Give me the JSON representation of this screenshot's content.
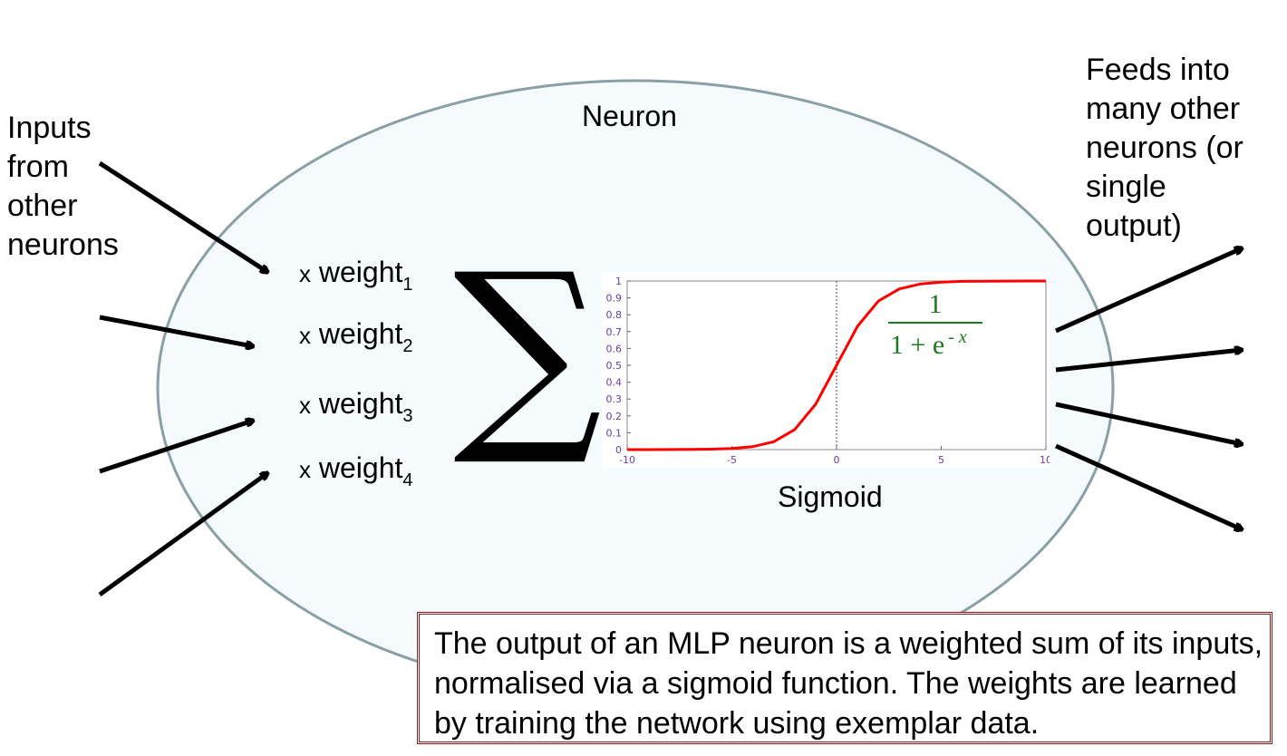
{
  "neuron_label": "Neuron",
  "inputs_label": "Inputs\nfrom\nother\nneurons",
  "outputs_label": "Feeds into\nmany other\nneurons (or\nsingle\noutput)",
  "weights": [
    {
      "prefix": "x",
      "word": "weight",
      "index": "1"
    },
    {
      "prefix": "x",
      "word": "weight",
      "index": "2"
    },
    {
      "prefix": "x",
      "word": "weight",
      "index": "3"
    },
    {
      "prefix": "x",
      "word": "weight",
      "index": "4"
    }
  ],
  "sum_symbol": "∑",
  "sigmoid_label": "Sigmoid",
  "formula": {
    "numerator": "1",
    "denominator_base": "1 + e",
    "denominator_exp": "- x"
  },
  "note": "The output of an MLP neuron is a weighted sum of its inputs, normalised via a sigmoid function.  The weights are learned by training the network using exemplar data.",
  "colors": {
    "neuron_fill": "#f5fafc",
    "neuron_stroke": "#8aa0a6",
    "curve": "#ff0000",
    "ticks": "#6a3d9a",
    "formula": "#1e7a1e",
    "note_border": "#8b1a1a"
  },
  "chart_data": {
    "type": "line",
    "function": "1/(1+e^-x)",
    "xlim": [
      -10,
      10
    ],
    "ylim": [
      0,
      1
    ],
    "x_ticks": [
      -10,
      -5,
      0,
      5,
      10
    ],
    "y_ticks": [
      0,
      0.1,
      0.2,
      0.3,
      0.4,
      0.5,
      0.6,
      0.7,
      0.8,
      0.9,
      1
    ],
    "x": [
      -10,
      -9,
      -8,
      -7,
      -6,
      -5,
      -4,
      -3,
      -2,
      -1,
      0,
      1,
      2,
      3,
      4,
      5,
      6,
      7,
      8,
      9,
      10
    ],
    "y": [
      5e-05,
      0.0001,
      0.0003,
      0.0009,
      0.0025,
      0.0067,
      0.018,
      0.047,
      0.119,
      0.269,
      0.5,
      0.731,
      0.881,
      0.953,
      0.982,
      0.993,
      0.998,
      0.999,
      0.9997,
      0.9999,
      1.0
    ],
    "grid": false,
    "vertical_reference_line_x": 0
  }
}
